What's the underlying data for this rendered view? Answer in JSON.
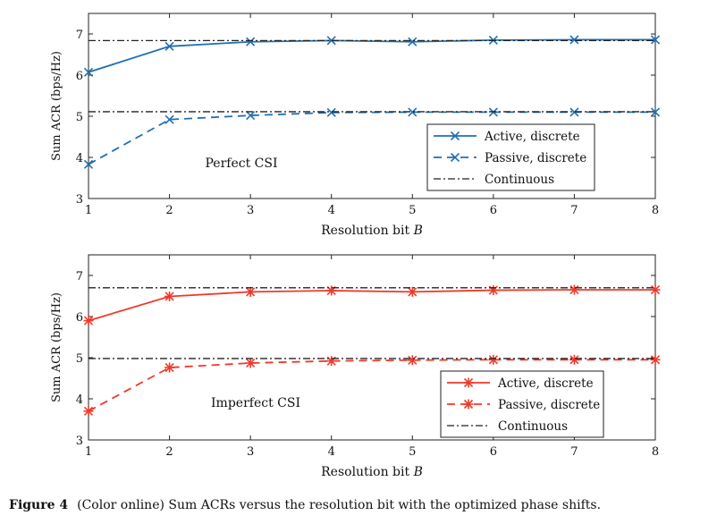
{
  "caption": {
    "label": "Figure 4",
    "text": "(Color online) Sum ACRs versus the resolution bit with the optimized phase shifts."
  },
  "chart_data": [
    {
      "type": "line",
      "annotation": "Perfect CSI",
      "xlabel": "Resolution bit",
      "xlabel_var": "B",
      "ylabel": "Sum ACR (bps/Hz)",
      "xlim": [
        1,
        8
      ],
      "ylim": [
        3,
        7.5
      ],
      "xticks": [
        1,
        2,
        3,
        4,
        5,
        6,
        7,
        8
      ],
      "yticks": [
        3,
        4,
        5,
        6,
        7
      ],
      "x": [
        1,
        2,
        3,
        4,
        5,
        6,
        7,
        8
      ],
      "color": "#1f6fb4",
      "marker": "x",
      "legend_position": "bottom-right",
      "series": [
        {
          "name": "Active, discrete",
          "style": "solid",
          "values": [
            6.07,
            6.7,
            6.81,
            6.84,
            6.81,
            6.85,
            6.86,
            6.86
          ]
        },
        {
          "name": "Passive, discrete",
          "style": "dashed",
          "values": [
            3.83,
            4.92,
            5.02,
            5.09,
            5.1,
            5.1,
            5.1,
            5.1
          ]
        },
        {
          "name": "Continuous",
          "style": "dashdot",
          "values": [
            6.84,
            6.84,
            6.84,
            6.84,
            6.84,
            6.84,
            6.84,
            6.84
          ],
          "ref2": [
            5.11,
            5.11,
            5.11,
            5.11,
            5.11,
            5.11,
            5.11,
            5.11
          ]
        }
      ]
    },
    {
      "type": "line",
      "annotation": "Imperfect CSI",
      "xlabel": "Resolution bit",
      "xlabel_var": "B",
      "ylabel": "Sum ACR (bps/Hz)",
      "xlim": [
        1,
        8
      ],
      "ylim": [
        3,
        7.5
      ],
      "xticks": [
        1,
        2,
        3,
        4,
        5,
        6,
        7,
        8
      ],
      "yticks": [
        3,
        4,
        5,
        6,
        7
      ],
      "x": [
        1,
        2,
        3,
        4,
        5,
        6,
        7,
        8
      ],
      "color": "#f03a2a",
      "marker": "asterisk",
      "legend_position": "bottom-right",
      "series": [
        {
          "name": "Active, discrete",
          "style": "solid",
          "values": [
            5.9,
            6.49,
            6.6,
            6.63,
            6.6,
            6.64,
            6.65,
            6.65
          ]
        },
        {
          "name": "Passive, discrete",
          "style": "dashed",
          "values": [
            3.7,
            4.76,
            4.87,
            4.92,
            4.94,
            4.95,
            4.95,
            4.95
          ]
        },
        {
          "name": "Continuous",
          "style": "dashdot",
          "values": [
            6.7,
            6.7,
            6.7,
            6.7,
            6.7,
            6.7,
            6.7,
            6.7
          ],
          "ref2": [
            4.98,
            4.98,
            4.98,
            4.98,
            4.98,
            4.98,
            4.98,
            4.98
          ]
        }
      ]
    }
  ]
}
